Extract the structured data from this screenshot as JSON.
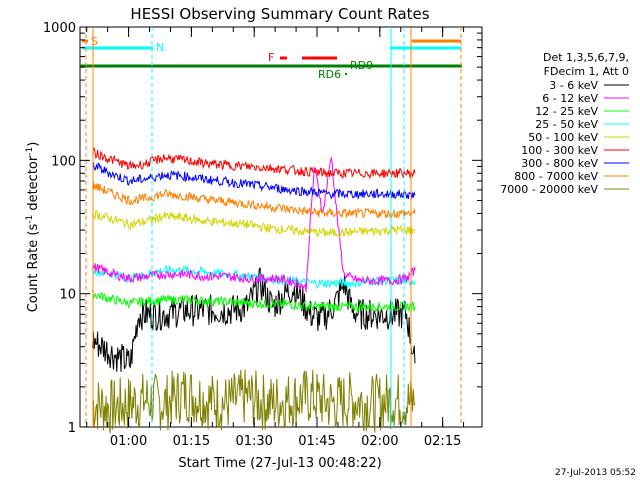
{
  "chart_data": {
    "type": "line",
    "title": "HESSI Observing Summary Count Rates",
    "xlabel": "Start Time (27-Jul-13 00:48:22)",
    "ylabel_main": "Count Rate (s",
    "ylabel_sup1": "-1",
    "ylabel_mid": " detector",
    "ylabel_sup2": "-1",
    "ylabel_end": ")",
    "yscale": "log",
    "ylim": [
      1,
      1000
    ],
    "xlim_minutes": [
      0,
      96
    ],
    "x_tick_labels": [
      "01:00",
      "01:15",
      "01:30",
      "01:45",
      "02:00",
      "02:15"
    ],
    "x_tick_minutes": [
      11.6,
      26.6,
      41.6,
      56.6,
      71.6,
      86.6
    ],
    "y_tick_labels": [
      "1",
      "10",
      "100",
      "1000"
    ],
    "y_tick_values": [
      1,
      10,
      100,
      1000
    ],
    "legend_header": [
      "Det 1,3,5,6,7,9,",
      "FDecim 1, Att 0"
    ],
    "series": [
      {
        "name": "3 - 6 keV",
        "color": "#000000",
        "x": [
          3,
          8,
          12,
          14,
          16,
          20,
          25,
          30,
          36,
          40,
          43,
          46,
          49,
          51,
          53,
          55,
          57,
          59,
          61,
          63,
          65,
          67,
          70,
          72,
          74,
          76,
          78,
          80
        ],
        "y": [
          4.5,
          3.5,
          3,
          7,
          7,
          7,
          7.5,
          7.5,
          7.5,
          8,
          12,
          8,
          10,
          11,
          9,
          7,
          6.5,
          7,
          8.5,
          12,
          7.5,
          7,
          7,
          7,
          7,
          7,
          7,
          3
        ]
      },
      {
        "name": "6 - 12 keV",
        "color": "#ff00ff",
        "x": [
          3,
          8,
          12,
          16,
          20,
          25,
          30,
          35,
          40,
          44,
          47,
          50,
          52,
          54,
          55,
          56,
          57,
          58,
          59,
          60,
          61,
          62,
          63,
          65,
          67,
          70,
          74,
          78,
          80
        ],
        "y": [
          16,
          14,
          13,
          13.5,
          14,
          14,
          13.5,
          13.5,
          13,
          13,
          13,
          12.5,
          12,
          11,
          35,
          90,
          60,
          40,
          65,
          110,
          50,
          25,
          14,
          13,
          12.5,
          12.5,
          12.5,
          13,
          15
        ]
      },
      {
        "name": "12 - 25 keV",
        "color": "#00ff00",
        "x": [
          3,
          8,
          12,
          16,
          20,
          25,
          30,
          35,
          40,
          45,
          50,
          55,
          60,
          65,
          70,
          75,
          80
        ],
        "y": [
          10,
          9,
          8.5,
          8.8,
          9,
          9,
          8.8,
          8.7,
          8.5,
          8.4,
          8.3,
          8,
          8,
          8,
          8,
          8,
          8
        ]
      },
      {
        "name": "25 - 50 keV",
        "color": "#00ffff",
        "x": [
          3,
          8,
          12,
          16,
          20,
          25,
          30,
          35,
          40,
          45,
          50,
          55,
          60,
          65,
          70,
          75,
          80
        ],
        "y": [
          15,
          14,
          13,
          14,
          15,
          15,
          14.5,
          14,
          13.5,
          13,
          12.5,
          12,
          12,
          12,
          12.5,
          12.5,
          12.5
        ]
      },
      {
        "name": "50 - 100 keV",
        "color": "#d4d400",
        "x": [
          3,
          8,
          12,
          16,
          20,
          25,
          30,
          35,
          40,
          45,
          50,
          55,
          60,
          65,
          70,
          75,
          80
        ],
        "y": [
          40,
          36,
          33,
          35,
          38,
          37,
          35,
          34,
          33,
          31,
          30,
          29,
          28.5,
          29,
          29.5,
          30,
          30
        ]
      },
      {
        "name": "100 - 300 keV",
        "color": "#ff0000",
        "x": [
          3,
          8,
          12,
          16,
          20,
          25,
          30,
          35,
          40,
          45,
          50,
          55,
          60,
          65,
          70,
          75,
          80
        ],
        "y": [
          115,
          100,
          90,
          95,
          105,
          100,
          95,
          92,
          90,
          88,
          85,
          82,
          80,
          80,
          80,
          80,
          80
        ]
      },
      {
        "name": "300 - 800 keV",
        "color": "#0000ff",
        "x": [
          3,
          8,
          12,
          16,
          20,
          25,
          30,
          35,
          40,
          45,
          50,
          55,
          60,
          65,
          70,
          75,
          80
        ],
        "y": [
          92,
          78,
          70,
          73,
          78,
          76,
          72,
          69,
          66,
          63,
          60,
          58,
          56,
          56,
          56,
          56,
          55
        ]
      },
      {
        "name": "800 - 7000 keV",
        "color": "#ff8000",
        "x": [
          3,
          8,
          12,
          16,
          20,
          25,
          30,
          35,
          40,
          45,
          50,
          55,
          60,
          65,
          70,
          75,
          80
        ],
        "y": [
          65,
          56,
          50,
          52,
          56,
          54,
          51,
          49,
          47,
          45,
          43,
          41,
          40,
          40,
          40,
          40,
          40
        ]
      },
      {
        "name": "7000 - 20000 keV",
        "color": "#808000",
        "x": [
          3,
          8,
          12,
          16,
          20,
          25,
          30,
          35,
          40,
          45,
          50,
          55,
          60,
          65,
          70,
          75,
          80
        ],
        "y": [
          1.5,
          1.4,
          1.5,
          1.6,
          1.5,
          1.8,
          1.6,
          1.5,
          1.7,
          1.5,
          1.6,
          1.7,
          1.5,
          1.6,
          1.5,
          1.6,
          1.5
        ]
      }
    ],
    "flags": [
      {
        "label": "S",
        "color": "#ff8000"
      },
      {
        "label": "N",
        "color": "#00ffff"
      },
      {
        "label": "F",
        "color": "#ff0000"
      },
      {
        "label": "RD9",
        "color": "#008000"
      },
      {
        "label": "RD6",
        "color": "#008000"
      }
    ]
  },
  "footer": {
    "timestamp": "27-Jul-2013 05:52"
  }
}
